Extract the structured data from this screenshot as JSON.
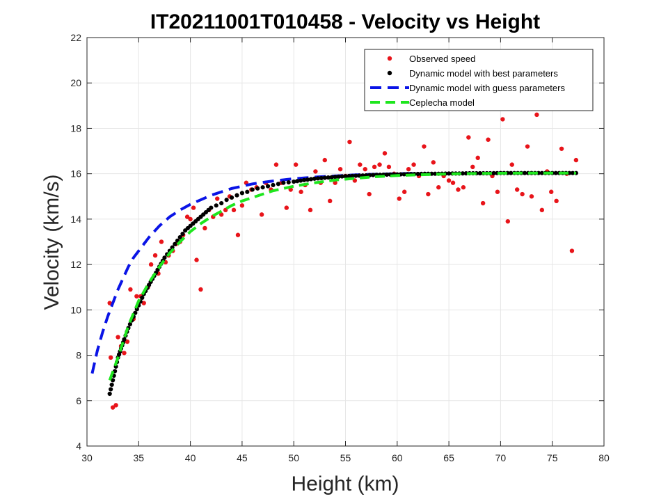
{
  "chart_data": {
    "type": "scatter",
    "title": "IT20211001T010458 - Velocity vs Height",
    "xlabel": "Height (km)",
    "ylabel": "Velocity (km/s)",
    "xlim": [
      30,
      80
    ],
    "ylim": [
      4,
      22
    ],
    "xticks": [
      30,
      35,
      40,
      45,
      50,
      55,
      60,
      65,
      70,
      75,
      80
    ],
    "yticks": [
      4,
      6,
      8,
      10,
      12,
      14,
      16,
      18,
      20,
      22
    ],
    "grid": true,
    "legend_position": "top-right",
    "colors": {
      "observed": "#e8141a",
      "best": "#000000",
      "guess": "#0a14e6",
      "ceplecha": "#1ee61e",
      "grid": "#e6e6e6",
      "axis": "#262626"
    },
    "series": [
      {
        "name": "Observed speed",
        "kind": "scatter",
        "x": [
          32.2,
          32.3,
          32.5,
          32.8,
          33.0,
          33.3,
          33.6,
          33.9,
          34.2,
          34.5,
          34.8,
          35.2,
          35.5,
          35.9,
          36.2,
          36.6,
          36.9,
          37.2,
          37.6,
          37.9,
          38.3,
          38.6,
          39.0,
          39.3,
          39.7,
          40.0,
          40.3,
          40.6,
          41.0,
          41.4,
          41.8,
          42.2,
          42.6,
          43.0,
          43.4,
          43.8,
          44.2,
          44.6,
          45.0,
          45.4,
          45.9,
          46.4,
          46.9,
          47.3,
          47.8,
          48.3,
          48.8,
          49.3,
          49.7,
          50.2,
          50.7,
          51.1,
          51.6,
          52.1,
          52.6,
          53.0,
          53.5,
          54.0,
          54.5,
          55.0,
          55.4,
          55.9,
          56.4,
          56.9,
          57.3,
          57.8,
          58.3,
          58.8,
          59.2,
          59.7,
          60.2,
          60.7,
          61.1,
          61.6,
          62.1,
          62.6,
          63.0,
          63.5,
          64.0,
          64.5,
          65.0,
          65.4,
          65.9,
          66.4,
          66.9,
          67.3,
          67.8,
          68.3,
          68.8,
          69.2,
          69.7,
          70.2,
          70.7,
          71.1,
          71.6,
          72.1,
          72.6,
          73.0,
          73.5,
          74.0,
          74.5,
          74.9,
          75.4,
          75.9,
          76.4,
          76.9,
          77.3
        ],
        "y": [
          10.3,
          7.9,
          5.7,
          5.8,
          8.8,
          8.4,
          8.1,
          8.6,
          10.9,
          9.6,
          10.6,
          10.6,
          10.3,
          11.0,
          12.0,
          12.4,
          11.6,
          13.0,
          12.1,
          12.4,
          12.6,
          12.9,
          13.0,
          13.3,
          14.1,
          14.0,
          14.5,
          12.2,
          10.9,
          13.6,
          14.4,
          14.1,
          14.9,
          14.2,
          14.4,
          15.0,
          14.4,
          13.3,
          14.6,
          15.6,
          15.3,
          15.4,
          14.2,
          15.6,
          15.3,
          16.4,
          15.6,
          14.5,
          15.3,
          16.4,
          15.2,
          15.5,
          14.4,
          16.1,
          15.6,
          16.6,
          14.8,
          15.6,
          16.2,
          15.9,
          17.4,
          15.7,
          16.4,
          16.2,
          15.1,
          16.3,
          16.4,
          16.9,
          16.3,
          16.0,
          14.9,
          15.2,
          16.2,
          16.4,
          15.9,
          17.2,
          15.1,
          16.5,
          15.4,
          15.9,
          15.7,
          15.6,
          15.3,
          15.4,
          17.6,
          16.3,
          16.7,
          14.7,
          17.5,
          15.9,
          15.2,
          18.4,
          13.9,
          16.4,
          15.3,
          15.1,
          17.2,
          15.0,
          18.6,
          14.4,
          16.1,
          15.2,
          14.8,
          17.1,
          16.0,
          12.6,
          16.6
        ]
      },
      {
        "name": "Dynamic model with best parameters",
        "kind": "scatter-dense",
        "x": [
          32.2,
          32.4,
          32.6,
          32.8,
          33.0,
          33.3,
          33.6,
          34.0,
          34.5,
          35.0,
          35.5,
          36.0,
          36.5,
          37.0,
          37.5,
          38.0,
          38.5,
          39.0,
          39.5,
          40.0,
          40.5,
          41.0,
          41.5,
          42.0,
          42.5,
          43.0,
          43.5,
          44.0,
          44.5,
          45.0,
          45.5,
          46.0,
          46.5,
          47.0,
          47.5,
          48.0,
          48.5,
          49.0,
          49.5,
          50.0,
          51.0,
          52.0,
          53.0,
          54.0,
          55.0,
          56.0,
          57.0,
          58.0,
          59.0,
          60.0,
          61.0,
          62.0,
          63.0,
          64.0,
          65.0,
          66.0,
          67.0,
          68.0,
          69.0,
          70.0,
          71.0,
          72.0,
          73.0,
          74.0,
          75.0,
          76.0,
          77.3
        ],
        "y": [
          6.3,
          6.7,
          7.1,
          7.5,
          7.9,
          8.3,
          8.7,
          9.2,
          9.7,
          10.2,
          10.7,
          11.1,
          11.5,
          11.9,
          12.3,
          12.6,
          12.9,
          13.2,
          13.5,
          13.7,
          13.9,
          14.1,
          14.3,
          14.5,
          14.6,
          14.7,
          14.85,
          14.95,
          15.05,
          15.15,
          15.2,
          15.3,
          15.35,
          15.4,
          15.45,
          15.5,
          15.55,
          15.6,
          15.62,
          15.65,
          15.72,
          15.78,
          15.82,
          15.86,
          15.89,
          15.91,
          15.93,
          15.95,
          15.96,
          15.97,
          15.98,
          15.99,
          16.0,
          16.0,
          16.01,
          16.01,
          16.02,
          16.02,
          16.02,
          16.03,
          16.03,
          16.03,
          16.03,
          16.03,
          16.03,
          16.03,
          16.03
        ]
      },
      {
        "name": "Dynamic model with guess parameters",
        "kind": "dashed-line",
        "x": [
          30.5,
          31.0,
          31.5,
          32.0,
          32.5,
          33.0,
          33.5,
          34.0,
          34.5,
          35.0,
          35.5,
          36.0,
          36.5,
          37.0,
          37.5,
          38.0,
          38.5,
          39.0,
          40.0,
          41.0,
          42.0,
          43.0,
          44.0,
          45.0,
          46.0,
          47.0,
          48.0,
          49.0,
          50.0,
          52.0,
          54.0,
          56.0,
          58.0,
          60.0,
          62.0
        ],
        "y": [
          7.2,
          8.2,
          9.0,
          9.7,
          10.3,
          10.9,
          11.4,
          11.9,
          12.3,
          12.6,
          12.9,
          13.2,
          13.45,
          13.7,
          13.9,
          14.1,
          14.25,
          14.4,
          14.65,
          14.85,
          15.05,
          15.2,
          15.35,
          15.45,
          15.55,
          15.62,
          15.68,
          15.73,
          15.78,
          15.85,
          15.9,
          15.95,
          15.98,
          16.0,
          16.02
        ]
      },
      {
        "name": "Ceplecha model",
        "kind": "dashed-line",
        "x": [
          32.2,
          33.0,
          34.0,
          35.0,
          36.0,
          37.0,
          38.0,
          39.0,
          40.0,
          41.0,
          42.0,
          43.0,
          44.0,
          45.0,
          46.0,
          47.0,
          48.0,
          49.0,
          50.0,
          52.0,
          54.0,
          56.0,
          58.0,
          60.0,
          62.0,
          64.0,
          66.0,
          68.0,
          70.0,
          72.0,
          74.0,
          77.3
        ],
        "y": [
          6.9,
          7.9,
          9.3,
          10.4,
          11.2,
          11.9,
          12.5,
          13.0,
          13.45,
          13.8,
          14.1,
          14.35,
          14.6,
          14.8,
          14.95,
          15.1,
          15.25,
          15.35,
          15.45,
          15.6,
          15.72,
          15.8,
          15.87,
          15.92,
          15.95,
          15.98,
          16.0,
          16.01,
          16.02,
          16.03,
          16.03,
          16.03
        ]
      }
    ]
  }
}
